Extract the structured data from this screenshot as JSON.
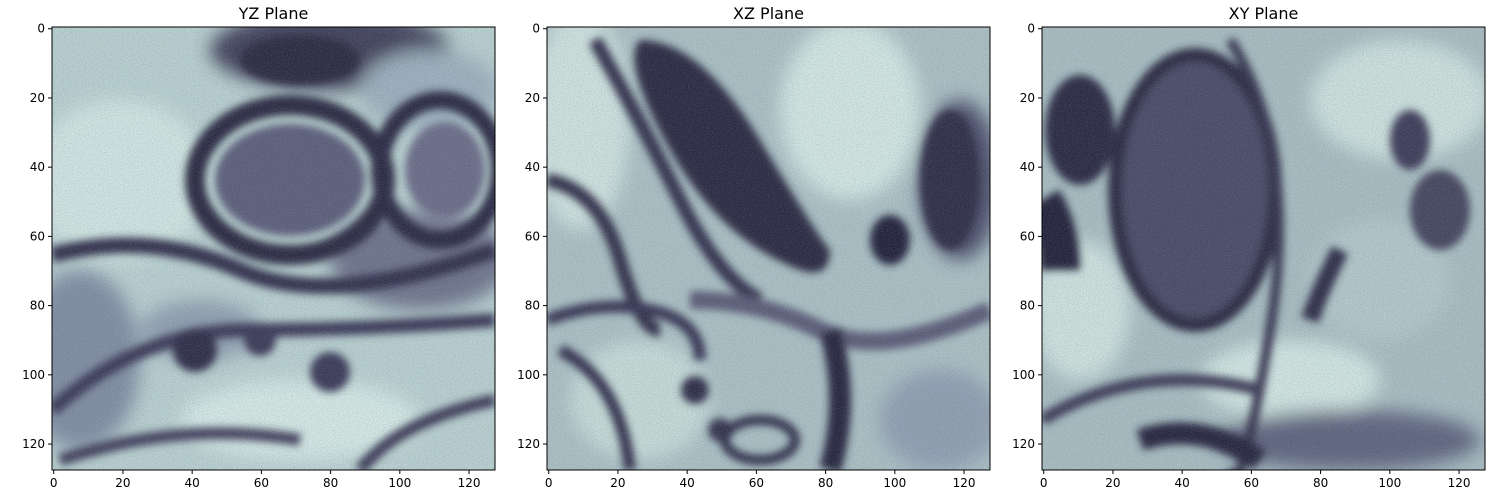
{
  "panels": [
    {
      "id": "yz",
      "title": "YZ Plane",
      "x_ticks": [
        "0",
        "20",
        "40",
        "60",
        "80",
        "100",
        "120"
      ],
      "y_ticks": [
        "0",
        "20",
        "40",
        "60",
        "80",
        "100",
        "120"
      ]
    },
    {
      "id": "xz",
      "title": "XZ Plane",
      "x_ticks": [
        "0",
        "20",
        "40",
        "60",
        "80",
        "100",
        "120"
      ],
      "y_ticks": [
        "0",
        "20",
        "40",
        "60",
        "80",
        "100",
        "120"
      ]
    },
    {
      "id": "xy",
      "title": "XY Plane",
      "x_ticks": [
        "0",
        "20",
        "40",
        "60",
        "80",
        "100",
        "120"
      ],
      "y_ticks": [
        "0",
        "20",
        "40",
        "60",
        "80",
        "100",
        "120"
      ]
    }
  ],
  "image_extent": [
    0,
    128
  ],
  "colormap": "bone",
  "colors": {
    "dark": "#1f1f30",
    "mid": "#5a5a78",
    "light": "#c8e0de",
    "axis": "#000000"
  }
}
